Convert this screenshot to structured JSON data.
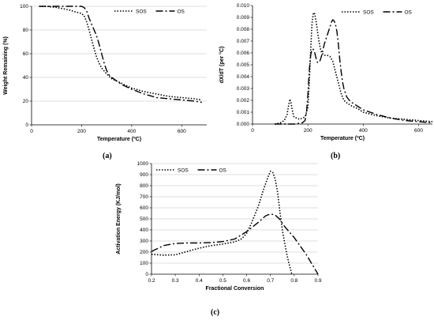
{
  "captions": {
    "a": "(a)",
    "b": "(b)",
    "c": "(c)"
  },
  "colors": {
    "axis": "#000000",
    "grid": "#bfbfbf",
    "series": "#000000",
    "background": "#ffffff"
  },
  "chart_data": [
    {
      "id": "a",
      "type": "line",
      "title": "",
      "xlabel": "Temperature (ºC)",
      "ylabel": "Weight Remaining (%)",
      "xlim": [
        0,
        700
      ],
      "ylim": [
        0,
        100
      ],
      "xticks": [
        0,
        200,
        400,
        600
      ],
      "yticks": [
        0,
        20,
        40,
        60,
        80,
        100
      ],
      "grid": "horizontal",
      "legend_position": "top-right",
      "series": [
        {
          "name": "SOS",
          "style": "dotted",
          "x": [
            30,
            60,
            100,
            150,
            180,
            200,
            210,
            220,
            230,
            240,
            250,
            260,
            270,
            280,
            300,
            320,
            340,
            360,
            400,
            450,
            500,
            550,
            600,
            650,
            680
          ],
          "y": [
            100,
            100,
            99,
            97,
            95,
            94,
            92,
            87,
            80,
            72,
            64,
            57,
            52,
            48,
            43,
            39,
            37,
            35,
            31,
            28,
            26,
            24,
            23,
            22,
            21
          ]
        },
        {
          "name": "OS",
          "style": "dashdot",
          "x": [
            30,
            100,
            150,
            180,
            200,
            210,
            220,
            230,
            240,
            250,
            260,
            270,
            280,
            290,
            300,
            310,
            320,
            340,
            360,
            400,
            450,
            500,
            550,
            600,
            650,
            680
          ],
          "y": [
            100,
            100,
            100,
            100,
            100,
            99,
            96,
            90,
            85,
            80,
            75,
            68,
            60,
            52,
            46,
            42,
            40,
            37,
            34,
            30,
            26,
            23,
            22,
            21,
            20,
            19
          ]
        }
      ]
    },
    {
      "id": "b",
      "type": "line",
      "title": "",
      "xlabel": "Temperature (ºC)",
      "ylabel": "dX/dT (per °C)",
      "xlim": [
        0,
        650
      ],
      "ylim": [
        0,
        0.01
      ],
      "xticks": [
        0,
        200,
        400,
        600
      ],
      "yticks": [
        "0.000",
        "0.001",
        "0.002",
        "0.003",
        "0.004",
        "0.005",
        "0.006",
        "0.007",
        "0.008",
        "0.009",
        "0.010"
      ],
      "grid": "none",
      "legend_position": "top-right",
      "series": [
        {
          "name": "SOS",
          "style": "dotted",
          "x": [
            80,
            100,
            115,
            125,
            130,
            135,
            140,
            145,
            150,
            160,
            170,
            180,
            190,
            200,
            205,
            210,
            215,
            220,
            225,
            230,
            235,
            240,
            245,
            250,
            260,
            270,
            280,
            290,
            300,
            310,
            320,
            330,
            340,
            360,
            380,
            400,
            450,
            500,
            550,
            600,
            650
          ],
          "y": [
            0,
            0.0001,
            0.0003,
            0.0008,
            0.0015,
            0.0021,
            0.0017,
            0.001,
            0.0006,
            0.0005,
            0.0004,
            0.0005,
            0.0006,
            0.0014,
            0.0035,
            0.0062,
            0.0085,
            0.0094,
            0.0093,
            0.0086,
            0.0078,
            0.007,
            0.0064,
            0.006,
            0.0058,
            0.0058,
            0.0057,
            0.0053,
            0.0044,
            0.0035,
            0.0026,
            0.002,
            0.0018,
            0.0015,
            0.0013,
            0.001,
            0.0007,
            0.0005,
            0.0004,
            0.0003,
            0.0002
          ]
        },
        {
          "name": "OS",
          "style": "dashdot",
          "x": [
            80,
            150,
            180,
            190,
            195,
            200,
            205,
            210,
            215,
            220,
            225,
            230,
            235,
            240,
            245,
            250,
            255,
            260,
            270,
            280,
            285,
            290,
            295,
            300,
            305,
            310,
            315,
            320,
            325,
            330,
            340,
            350,
            360,
            380,
            400,
            450,
            500,
            550,
            600,
            650
          ],
          "y": [
            0,
            0,
            0.0001,
            0.0003,
            0.001,
            0.0025,
            0.0045,
            0.0058,
            0.0063,
            0.0063,
            0.006,
            0.0055,
            0.0052,
            0.0052,
            0.0054,
            0.0058,
            0.0063,
            0.0068,
            0.0075,
            0.0082,
            0.0086,
            0.0088,
            0.0087,
            0.0084,
            0.0078,
            0.0068,
            0.0055,
            0.0045,
            0.0036,
            0.003,
            0.0023,
            0.002,
            0.0018,
            0.0015,
            0.0012,
            0.0008,
            0.0005,
            0.0003,
            0.0002,
            0.0001
          ]
        }
      ]
    },
    {
      "id": "c",
      "type": "line",
      "title": "",
      "xlabel": "Fractional Conversion",
      "ylabel": "Activation Energy (KJ/mol)",
      "xlim": [
        0.2,
        0.9
      ],
      "ylim": [
        0,
        1000
      ],
      "xticks": [
        "0.2",
        "0.3",
        "0.4",
        "0.5",
        "0.6",
        "0.7",
        "0.8",
        "0.9"
      ],
      "yticks": [
        0,
        100,
        200,
        300,
        400,
        500,
        600,
        700,
        800,
        900,
        1000
      ],
      "grid": "horizontal",
      "legend_position": "top-left",
      "series": [
        {
          "name": "SOS",
          "style": "dotted",
          "x": [
            0.2,
            0.25,
            0.3,
            0.35,
            0.4,
            0.45,
            0.5,
            0.55,
            0.58,
            0.6,
            0.62,
            0.65,
            0.67,
            0.69,
            0.7,
            0.71,
            0.72,
            0.73,
            0.74,
            0.75,
            0.76,
            0.77,
            0.78,
            0.79
          ],
          "y": [
            180,
            172,
            175,
            205,
            235,
            258,
            272,
            292,
            320,
            370,
            460,
            620,
            760,
            880,
            930,
            920,
            860,
            740,
            560,
            400,
            280,
            170,
            80,
            0
          ]
        },
        {
          "name": "OS",
          "style": "dashdot",
          "x": [
            0.2,
            0.25,
            0.3,
            0.35,
            0.4,
            0.45,
            0.5,
            0.55,
            0.6,
            0.65,
            0.68,
            0.7,
            0.72,
            0.74,
            0.76,
            0.8,
            0.85,
            0.9
          ],
          "y": [
            205,
            258,
            278,
            282,
            282,
            285,
            295,
            318,
            385,
            470,
            528,
            545,
            535,
            495,
            430,
            330,
            180,
            0
          ]
        }
      ]
    }
  ]
}
